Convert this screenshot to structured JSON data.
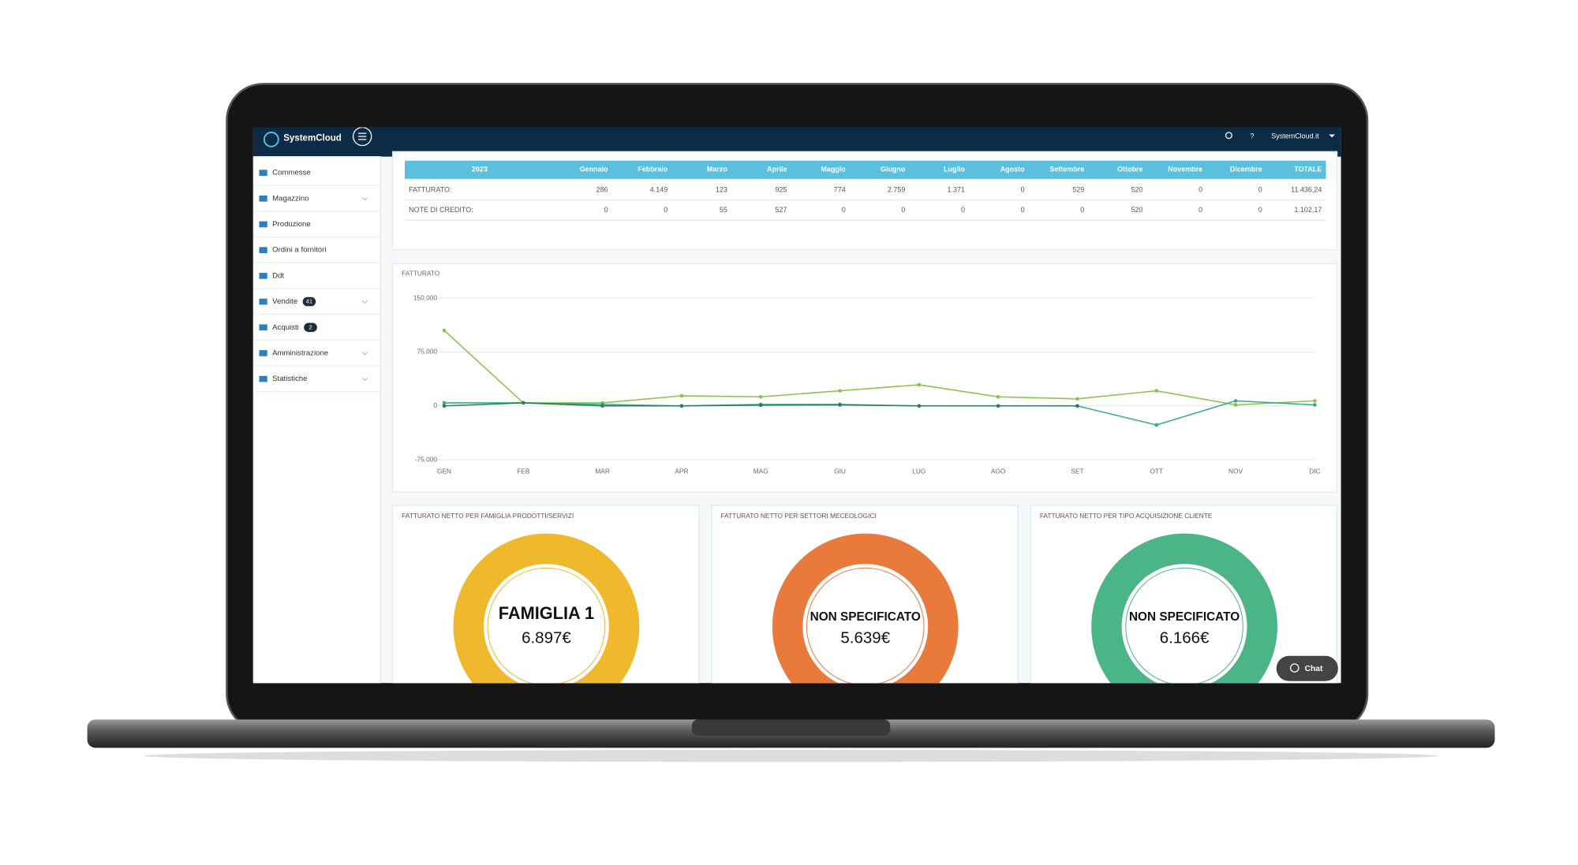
{
  "header": {
    "brand": "SystemCloud",
    "account": "SystemCloud.it",
    "help": "?"
  },
  "sidebar": [
    {
      "label": "Commesse"
    },
    {
      "label": "Magazzino",
      "expandable": true
    },
    {
      "label": "Produzione"
    },
    {
      "label": "Ordini a fornitori"
    },
    {
      "label": "Ddt"
    },
    {
      "label": "Vendite",
      "badge": "41",
      "expandable": true
    },
    {
      "label": "Acquisti",
      "badge": "2"
    },
    {
      "label": "Amministrazione",
      "expandable": true
    },
    {
      "label": "Statistiche",
      "expandable": true
    }
  ],
  "table": {
    "header": [
      "2023",
      "Gennaio",
      "Febbraio",
      "Marzo",
      "Aprile",
      "Maggio",
      "Giugno",
      "Luglio",
      "Agosto",
      "Settembre",
      "Ottobre",
      "Novembre",
      "Dicembre",
      "TOTALE"
    ],
    "rows": [
      [
        "FATTURATO:",
        "286",
        "4.149",
        "123",
        "925",
        "774",
        "2.759",
        "1.371",
        "0",
        "529",
        "520",
        "0",
        "0",
        "11.436,24"
      ],
      [
        "NOTE DI CREDITO:",
        "0",
        "0",
        "55",
        "527",
        "0",
        "0",
        "0",
        "0",
        "0",
        "520",
        "0",
        "0",
        "1.102,17"
      ]
    ]
  },
  "chart_data": {
    "type": "line",
    "title": "FATTURATO",
    "categories": [
      "GEN",
      "FEB",
      "MAR",
      "APR",
      "MAG",
      "GIU",
      "LUG",
      "AGO",
      "SET",
      "OTT",
      "NOV",
      "DIC"
    ],
    "series": [
      {
        "color": "#8dc04a",
        "values": [
          105000,
          4200,
          4200,
          14000,
          12600,
          21000,
          29400,
          12600,
          9800,
          21000,
          1400,
          7000
        ]
      },
      {
        "color": "#3aa98a",
        "values": [
          4200,
          4200,
          2000,
          0,
          2000,
          2000,
          0,
          0,
          0,
          -26600,
          7000,
          1400
        ]
      },
      {
        "color": "#2e7d5b",
        "values": [
          0,
          4200,
          0,
          0,
          1000,
          1400,
          0,
          0,
          0,
          null,
          null,
          null
        ]
      }
    ],
    "ylim": [
      -75000,
      150000
    ],
    "yticks": [
      -75000,
      0,
      75000,
      150000
    ],
    "ytick_labels": [
      "-75,000",
      "0",
      "75,000",
      "150,000"
    ],
    "grid": true
  },
  "donuts": [
    {
      "title": "FATTURATO NETTO PER FAMIGLIA PRODOTTI/SERVIZI",
      "label": "FAMIGLIA 1",
      "value": "6.897€",
      "color": "#f0b92d"
    },
    {
      "title": "FATTURATO NETTO PER SETTORI MECEOLOGICI",
      "label": "NON SPECIFICATO",
      "value": "5.639€",
      "color": "#e97a3c"
    },
    {
      "title": "FATTURATO NETTO PER TIPO ACQUISIZIONE CLIENTE",
      "label": "NON SPECIFICATO",
      "value": "6.166€",
      "color": "#4cb587"
    }
  ],
  "chat": "Chat"
}
